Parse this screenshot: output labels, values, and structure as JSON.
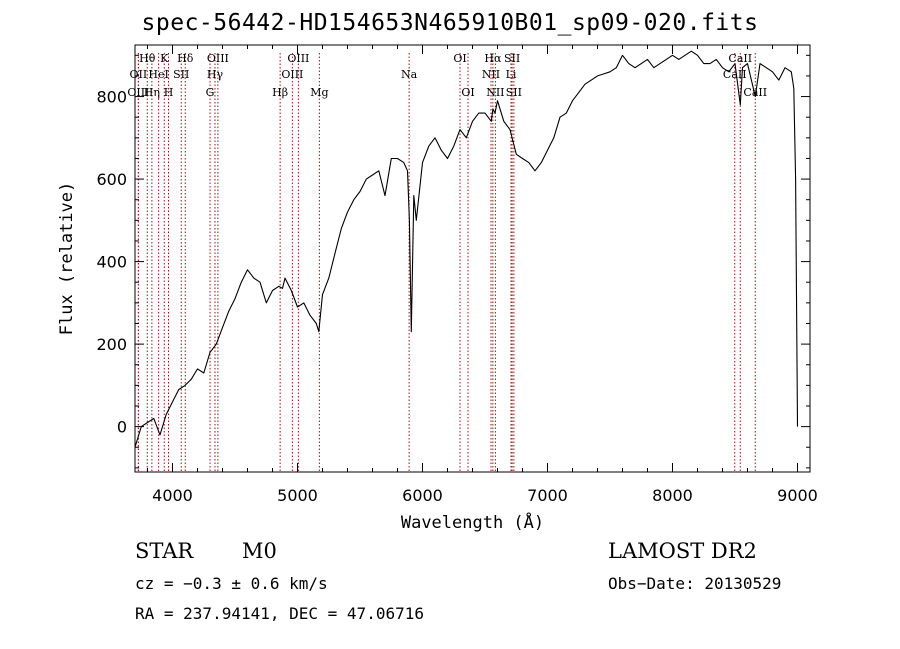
{
  "chart_data": {
    "type": "line",
    "title": "spec-56442-HD154653N465910B01_sp09-020.fits",
    "xlabel": "Wavelength (Å)",
    "ylabel": "Flux (relative)",
    "xlim": [
      3700,
      9100
    ],
    "ylim": [
      -110,
      925
    ],
    "xticks": [
      4000,
      5000,
      6000,
      7000,
      8000,
      9000
    ],
    "yticks": [
      0,
      200,
      400,
      600,
      800
    ],
    "grid": false,
    "series": [
      {
        "x": [
          3700,
          3750,
          3800,
          3850,
          3900,
          3950,
          4000,
          4050,
          4100,
          4150,
          4200,
          4250,
          4300,
          4350,
          4400,
          4450,
          4500,
          4550,
          4600,
          4650,
          4700,
          4750,
          4800,
          4850,
          4880,
          4900,
          4950,
          5000,
          5050,
          5100,
          5150,
          5170,
          5200,
          5250,
          5300,
          5350,
          5400,
          5450,
          5500,
          5550,
          5600,
          5650,
          5700,
          5750,
          5800,
          5850,
          5880,
          5895,
          5910,
          5930,
          5950,
          6000,
          6050,
          6100,
          6150,
          6200,
          6250,
          6300,
          6350,
          6400,
          6450,
          6500,
          6550,
          6563,
          6580,
          6600,
          6650,
          6700,
          6750,
          6800,
          6850,
          6900,
          6950,
          7000,
          7050,
          7100,
          7150,
          7200,
          7250,
          7300,
          7350,
          7400,
          7450,
          7500,
          7550,
          7600,
          7650,
          7700,
          7750,
          7800,
          7850,
          7900,
          7950,
          8000,
          8050,
          8100,
          8150,
          8200,
          8250,
          8300,
          8350,
          8400,
          8450,
          8500,
          8542,
          8560,
          8600,
          8662,
          8700,
          8750,
          8800,
          8850,
          8900,
          8950,
          8970,
          8985,
          9000
        ],
        "y": [
          -50,
          0,
          10,
          20,
          -20,
          30,
          60,
          90,
          100,
          115,
          140,
          130,
          180,
          200,
          240,
          280,
          310,
          350,
          380,
          360,
          350,
          300,
          330,
          340,
          335,
          360,
          330,
          290,
          300,
          270,
          250,
          230,
          320,
          360,
          420,
          480,
          520,
          550,
          570,
          600,
          610,
          620,
          560,
          650,
          650,
          640,
          620,
          500,
          230,
          560,
          500,
          640,
          680,
          700,
          670,
          650,
          680,
          720,
          700,
          740,
          760,
          760,
          740,
          770,
          760,
          790,
          740,
          720,
          660,
          650,
          640,
          620,
          640,
          670,
          700,
          750,
          760,
          790,
          810,
          830,
          840,
          850,
          855,
          860,
          870,
          900,
          880,
          870,
          880,
          890,
          870,
          880,
          890,
          900,
          890,
          900,
          910,
          900,
          880,
          880,
          890,
          870,
          860,
          880,
          780,
          870,
          880,
          800,
          880,
          870,
          860,
          840,
          870,
          860,
          820,
          600,
          0
        ]
      }
    ],
    "line_annotations": [
      {
        "label": "Hθ",
        "wavelength": 3798,
        "row": 1
      },
      {
        "label": "OII",
        "wavelength": 3727,
        "row": 2
      },
      {
        "label": "OIII",
        "wavelength": 3727,
        "row": 3
      },
      {
        "label": "Hη",
        "wavelength": 3835,
        "row": 3
      },
      {
        "label": "K",
        "wavelength": 3934,
        "row": 1
      },
      {
        "label": "HeI",
        "wavelength": 3889,
        "row": 2
      },
      {
        "label": "H",
        "wavelength": 3968,
        "row": 3
      },
      {
        "label": "SII",
        "wavelength": 4070,
        "row": 2
      },
      {
        "label": "Hδ",
        "wavelength": 4102,
        "row": 1
      },
      {
        "label": "OIII",
        "wavelength": 4363,
        "row": 1
      },
      {
        "label": "Hγ",
        "wavelength": 4340,
        "row": 2
      },
      {
        "label": "G",
        "wavelength": 4300,
        "row": 3
      },
      {
        "label": "Hβ",
        "wavelength": 4861,
        "row": 3
      },
      {
        "label": "OIII",
        "wavelength": 5007,
        "row": 1
      },
      {
        "label": "OIII",
        "wavelength": 4959,
        "row": 2
      },
      {
        "label": "Mg",
        "wavelength": 5175,
        "row": 3
      },
      {
        "label": "Na",
        "wavelength": 5893,
        "row": 2
      },
      {
        "label": "OI",
        "wavelength": 6300,
        "row": 1
      },
      {
        "label": "OI",
        "wavelength": 6364,
        "row": 3
      },
      {
        "label": "Hα",
        "wavelength": 6563,
        "row": 1
      },
      {
        "label": "SII",
        "wavelength": 6717,
        "row": 1
      },
      {
        "label": "NII",
        "wavelength": 6548,
        "row": 2
      },
      {
        "label": "Li",
        "wavelength": 6708,
        "row": 2
      },
      {
        "label": "NII",
        "wavelength": 6583,
        "row": 3
      },
      {
        "label": "SII",
        "wavelength": 6731,
        "row": 3
      },
      {
        "label": "CaII",
        "wavelength": 8542,
        "row": 1
      },
      {
        "label": "CaII",
        "wavelength": 8498,
        "row": 2
      },
      {
        "label": "CaII",
        "wavelength": 8662,
        "row": 3
      }
    ]
  },
  "info": {
    "object_class": "STAR",
    "subclass": "M0",
    "survey": "LAMOST DR2",
    "cz": "cz = −0.3 ± 0.6 km/s",
    "obs_date": "Obs−Date: 20130529",
    "coords": "RA = 237.94141, DEC =  47.06716"
  }
}
